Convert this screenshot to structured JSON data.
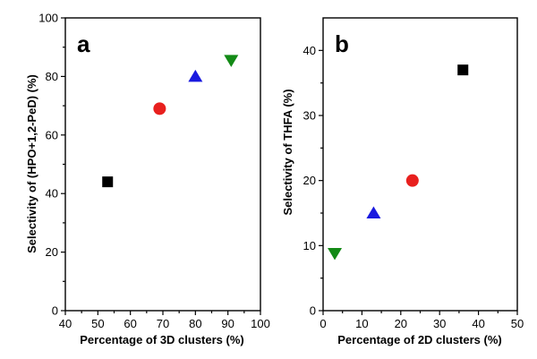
{
  "chart_data": [
    {
      "panel_label": "a",
      "type": "scatter",
      "xlabel": "Percentage of 3D clusters (%)",
      "ylabel": "Selectivity of (HPO+1,2-PeD) (%)",
      "xlim": [
        40,
        100
      ],
      "ylim": [
        0,
        100
      ],
      "xticks": [
        40,
        50,
        60,
        70,
        80,
        90,
        100
      ],
      "yticks": [
        0,
        20,
        40,
        60,
        80,
        100
      ],
      "points": [
        {
          "x": 53,
          "y": 44,
          "marker": "square",
          "color": "#000000"
        },
        {
          "x": 69,
          "y": 69,
          "marker": "circle",
          "color": "#e8201e"
        },
        {
          "x": 80,
          "y": 80,
          "marker": "triangle-up",
          "color": "#1a1adf"
        },
        {
          "x": 91,
          "y": 85.5,
          "marker": "triangle-down",
          "color": "#138a16"
        }
      ]
    },
    {
      "panel_label": "b",
      "type": "scatter",
      "xlabel": "Percentage of 2D clusters (%)",
      "ylabel": "Selectivity of THFA (%)",
      "xlim": [
        0,
        50
      ],
      "ylim": [
        0,
        45
      ],
      "xticks": [
        0,
        10,
        20,
        30,
        40,
        50
      ],
      "yticks": [
        0,
        10,
        20,
        30,
        40
      ],
      "points": [
        {
          "x": 36,
          "y": 37,
          "marker": "square",
          "color": "#000000"
        },
        {
          "x": 23,
          "y": 20,
          "marker": "circle",
          "color": "#e8201e"
        },
        {
          "x": 13,
          "y": 15,
          "marker": "triangle-up",
          "color": "#1a1adf"
        },
        {
          "x": 3,
          "y": 8.8,
          "marker": "triangle-down",
          "color": "#138a16"
        }
      ]
    }
  ]
}
